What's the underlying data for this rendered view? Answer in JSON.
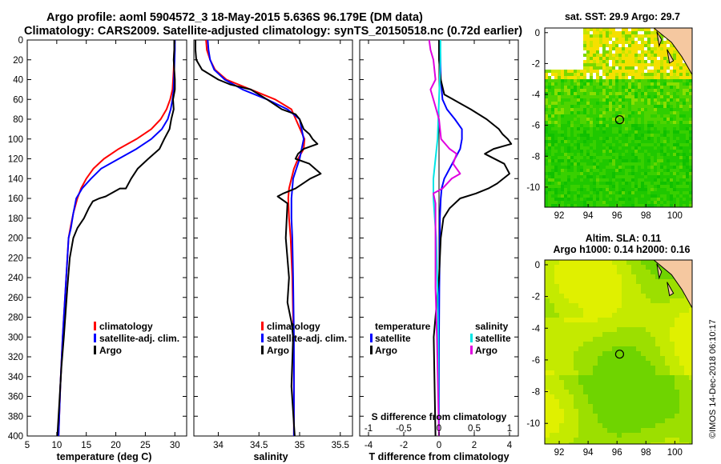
{
  "header": {
    "line1": "Argo profile: aoml 5904572_3 18-May-2015 5.636S 96.179E (DM data)",
    "line2": "Climatology: CARS2009. Satellite-adjusted climatology: synTS_20150518.nc (0.72d earlier)"
  },
  "colors": {
    "climatology": "#ff0000",
    "satellite": "#0000ff",
    "argo": "#000000",
    "s_satellite": "#00e5e5",
    "s_argo": "#e000e0"
  },
  "chart_data": [
    {
      "type": "line",
      "name": "temperature",
      "xlabel": "temperature (deg C)",
      "ylabel": "",
      "xlim": [
        5,
        32
      ],
      "ylim": [
        400,
        0
      ],
      "xticks": [
        5,
        10,
        15,
        20,
        25,
        30
      ],
      "yticks": [
        0,
        20,
        40,
        60,
        80,
        100,
        120,
        140,
        160,
        180,
        200,
        220,
        240,
        260,
        280,
        300,
        320,
        340,
        360,
        380,
        400
      ],
      "legend": [
        "climatology",
        "satellite-adj. clim.",
        "Argo"
      ],
      "series": [
        {
          "name": "climatology",
          "x": [
            29.9,
            29.9,
            29.8,
            29.6,
            29.2,
            28.6,
            27.6,
            26.0,
            23.5,
            20.5,
            18.0,
            16.2,
            15.0,
            14.1,
            13.5,
            12.8,
            12.3,
            12.0,
            11.5,
            11.0,
            10.6,
            10.3
          ],
          "y": [
            0,
            10,
            30,
            50,
            60,
            70,
            80,
            90,
            100,
            110,
            120,
            130,
            140,
            150,
            160,
            175,
            190,
            200,
            250,
            300,
            350,
            400
          ]
        },
        {
          "name": "satellite-adj. clim.",
          "x": [
            30.0,
            30.0,
            29.9,
            29.8,
            29.6,
            29.3,
            28.8,
            27.8,
            26.0,
            23.5,
            20.5,
            17.5,
            15.8,
            14.3,
            13.3,
            12.8,
            12.4,
            12.0,
            11.5,
            11.0,
            10.6,
            10.3
          ],
          "y": [
            0,
            10,
            30,
            50,
            60,
            70,
            80,
            90,
            100,
            110,
            120,
            130,
            140,
            150,
            160,
            175,
            190,
            200,
            250,
            300,
            350,
            400
          ]
        },
        {
          "name": "Argo",
          "x": [
            29.9,
            29.9,
            29.8,
            29.9,
            30.0,
            30.0,
            29.7,
            29.8,
            29.4,
            29.1,
            28.2,
            27.4,
            25.5,
            23.7,
            22.6,
            21.7,
            20.7,
            19.2,
            18.3,
            17.2,
            16.1,
            15.4,
            14.6,
            13.5,
            12.8,
            12.2,
            11.8,
            11.2,
            10.8,
            10.4,
            10.1
          ],
          "y": [
            0,
            10,
            20,
            30,
            40,
            50,
            60,
            70,
            80,
            90,
            100,
            110,
            120,
            130,
            140,
            150,
            150,
            155,
            158,
            160,
            163,
            170,
            180,
            190,
            200,
            220,
            250,
            300,
            330,
            370,
            400
          ]
        }
      ]
    },
    {
      "type": "line",
      "name": "salinity",
      "xlabel": "salinity",
      "ylabel": "",
      "xlim": [
        33.7,
        35.65
      ],
      "ylim": [
        400,
        0
      ],
      "xticks": [
        34,
        34.5,
        35,
        35.5
      ],
      "legend": [
        "climatology",
        "satellite-adj. clim.",
        "Argo"
      ],
      "series": [
        {
          "name": "climatology",
          "x": [
            33.85,
            33.86,
            33.9,
            33.96,
            34.1,
            34.4,
            34.7,
            34.9,
            35.06,
            35.05,
            34.98,
            34.93,
            34.9,
            34.87,
            34.86,
            34.87,
            34.89,
            34.91,
            34.92,
            34.93,
            34.93
          ],
          "y": [
            0,
            10,
            20,
            30,
            40,
            50,
            60,
            70,
            100,
            110,
            120,
            130,
            140,
            150,
            160,
            180,
            200,
            240,
            280,
            330,
            400
          ]
        },
        {
          "name": "satellite-adj. clim.",
          "x": [
            33.87,
            33.88,
            33.9,
            33.95,
            34.08,
            34.3,
            34.6,
            34.85,
            35.0,
            35.05,
            35.0,
            34.96,
            34.92,
            34.9,
            34.9,
            34.91,
            34.92,
            34.93,
            34.93
          ],
          "y": [
            0,
            10,
            20,
            30,
            40,
            50,
            60,
            70,
            80,
            100,
            120,
            130,
            140,
            160,
            180,
            200,
            240,
            300,
            400
          ]
        },
        {
          "name": "Argo",
          "x": [
            33.72,
            33.72,
            33.73,
            33.8,
            34.0,
            34.15,
            34.4,
            34.6,
            34.78,
            34.95,
            35.0,
            35.05,
            35.12,
            35.16,
            35.22,
            35.05,
            34.98,
            34.95,
            35.12,
            35.26,
            35.13,
            34.95,
            34.8,
            34.73,
            34.85,
            34.83,
            34.87,
            34.85,
            34.9,
            34.92,
            34.9,
            34.94
          ],
          "y": [
            0,
            10,
            20,
            30,
            40,
            45,
            50,
            60,
            70,
            75,
            80,
            90,
            95,
            100,
            105,
            110,
            115,
            120,
            125,
            135,
            140,
            150,
            155,
            158,
            165,
            200,
            240,
            265,
            285,
            300,
            350,
            400
          ]
        }
      ]
    },
    {
      "type": "line",
      "name": "difference from climatology",
      "xlabel": "T difference from climatology",
      "xlabel_top": "S difference from climatology",
      "xlim": [
        -4.5,
        4.5
      ],
      "x2lim": [
        -1.125,
        1.125
      ],
      "xticks": [
        -4,
        -2,
        0,
        2,
        4
      ],
      "x2ticks": [
        -1,
        -0.5,
        0,
        0.5,
        1
      ],
      "x2ticklabels": [
        "-1",
        "-0,5",
        "0",
        "0,5",
        "1"
      ],
      "legend_temperature": [
        "temperature",
        "satellite",
        "Argo"
      ],
      "legend_salinity": [
        "salinity",
        "satellite",
        "Argo"
      ],
      "series": [
        {
          "name": "T satellite",
          "x": [
            0.05,
            0.08,
            0.1,
            0.2,
            0.45,
            0.9,
            1.3,
            1.3,
            1.2,
            0.9,
            0.6,
            0.3,
            0.15,
            0.1,
            0.05,
            0.05,
            0.02,
            0.0,
            0.0,
            0.0
          ],
          "y": [
            0,
            20,
            40,
            60,
            70,
            80,
            90,
            100,
            110,
            120,
            130,
            140,
            150,
            160,
            180,
            200,
            250,
            300,
            350,
            400
          ]
        },
        {
          "name": "T Argo",
          "x": [
            0.0,
            0.0,
            0.1,
            0.3,
            0.8,
            1.8,
            2.7,
            3.4,
            3.6,
            3.9,
            4.1,
            3.1,
            2.6,
            3.7,
            4.0,
            3.3,
            2.8,
            2.1,
            1.2,
            0.6,
            0.25,
            0.1,
            0.0,
            -0.2,
            -0.3,
            -0.2
          ],
          "y": [
            0,
            20,
            40,
            55,
            60,
            70,
            80,
            90,
            95,
            100,
            105,
            110,
            115,
            125,
            135,
            145,
            150,
            155,
            160,
            170,
            180,
            200,
            240,
            280,
            300,
            400
          ]
        },
        {
          "name": "S satellite",
          "x": [
            0.02,
            0.02,
            0.01,
            0.0,
            -0.01,
            -0.02,
            -0.05,
            -0.08,
            -0.08,
            -0.06,
            -0.04,
            -0.02,
            -0.01,
            0.0
          ],
          "y": [
            0,
            20,
            40,
            60,
            80,
            100,
            120,
            140,
            160,
            180,
            200,
            250,
            300,
            400
          ]
        },
        {
          "name": "S Argo",
          "x": [
            -0.14,
            -0.12,
            -0.08,
            -0.05,
            -0.12,
            -0.08,
            0.0,
            0.03,
            0.15,
            0.25,
            0.2,
            0.3,
            0.18,
            0.05,
            -0.08,
            -0.05,
            -0.05,
            -0.05,
            -0.03,
            0.0
          ],
          "y": [
            0,
            10,
            20,
            40,
            50,
            60,
            80,
            100,
            110,
            115,
            125,
            135,
            140,
            150,
            155,
            165,
            200,
            250,
            300,
            400
          ]
        }
      ]
    },
    {
      "type": "heatmap",
      "name": "satellite SST map",
      "title": "sat. SST: 29.9 Argo: 29.7",
      "xticks": [
        92,
        94,
        96,
        98,
        100
      ],
      "yticks": [
        0,
        -2,
        -4,
        -6,
        -8,
        -10
      ],
      "xlim": [
        91,
        101.2
      ],
      "ylim": [
        -11.3,
        0.3
      ],
      "argo_position": {
        "lon": 96.179,
        "lat": -5.636
      }
    },
    {
      "type": "heatmap",
      "name": "SLA map",
      "title": "Altim. SLA: 0.11",
      "subtitle": "Argo h1000: 0.14 h2000: 0.16",
      "xticks": [
        92,
        94,
        96,
        98,
        100
      ],
      "yticks": [
        0,
        -2,
        -4,
        -6,
        -8,
        -10
      ],
      "xlim": [
        91,
        101.2
      ],
      "ylim": [
        -11.3,
        0.3
      ],
      "argo_position": {
        "lon": 96.179,
        "lat": -5.636
      }
    }
  ],
  "footer": {
    "credit": "©IMOS 14-Dec-2018 06:10:17"
  }
}
